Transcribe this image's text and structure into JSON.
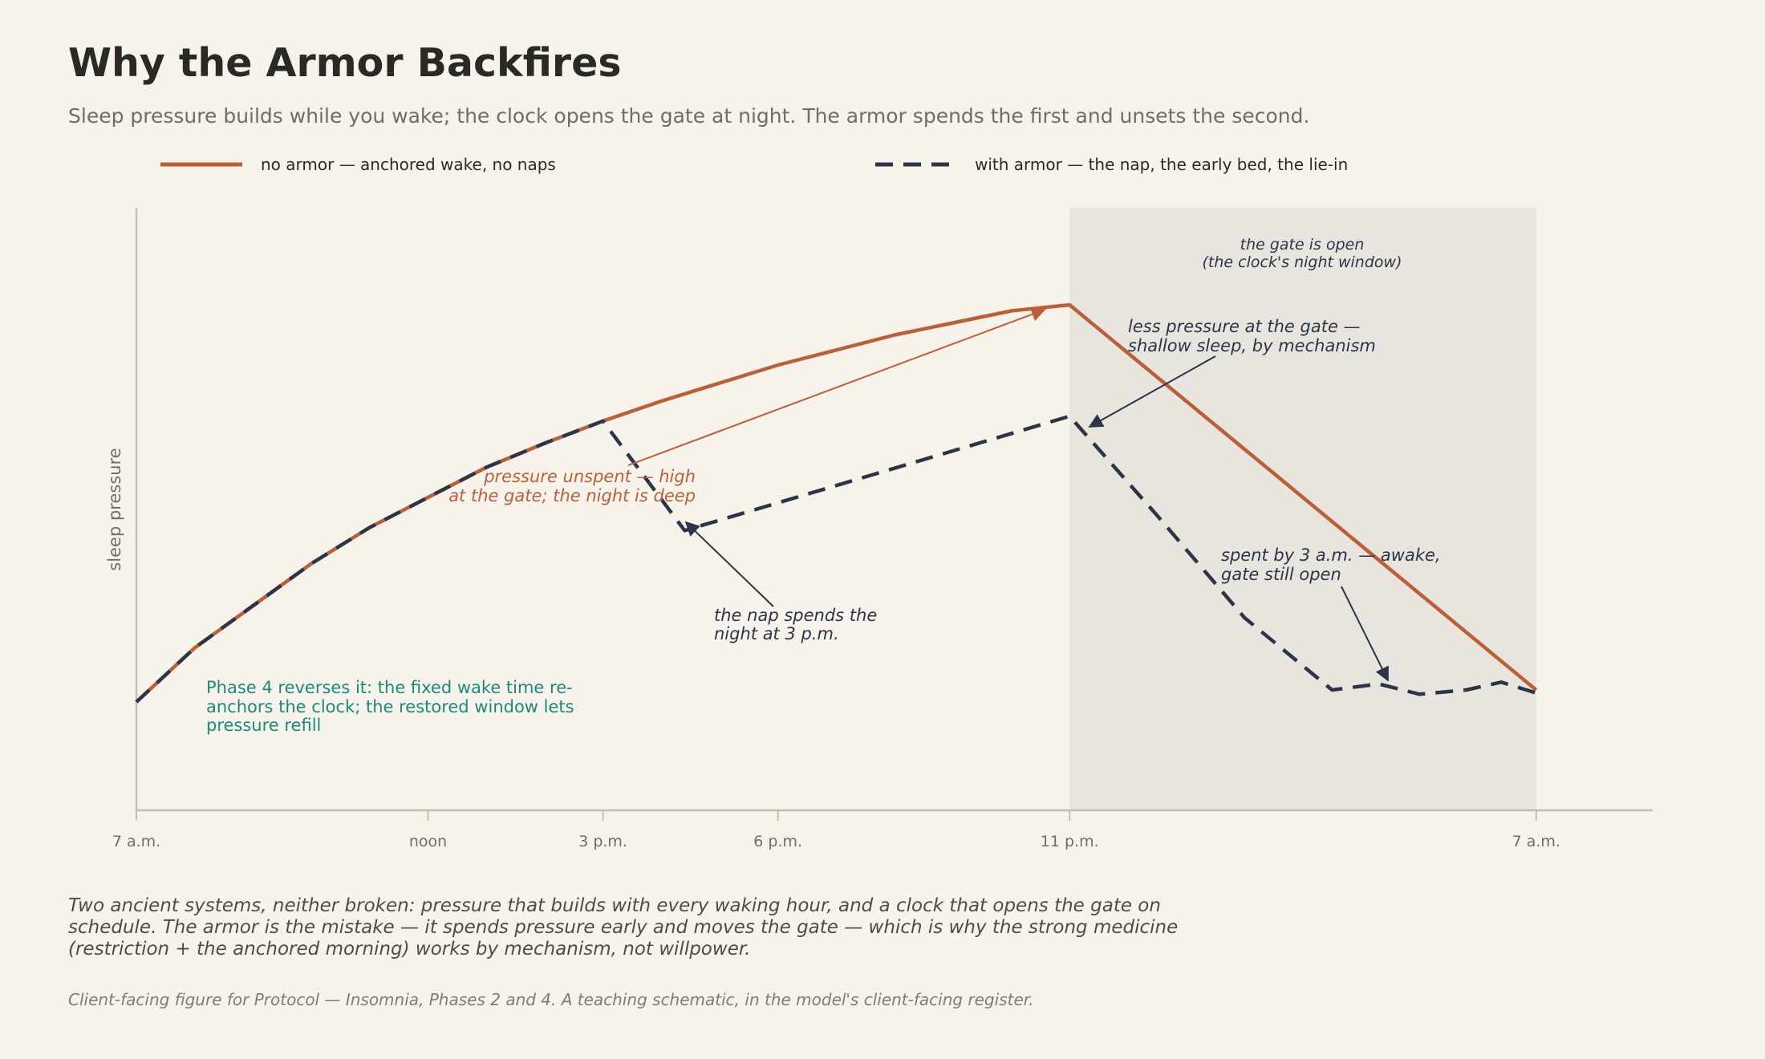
{
  "title": "Why the Armor Backfires",
  "subtitle": "Sleep pressure builds while you wake; the clock opens the gate at night. The armor spends the first and unsets the second.",
  "legend": {
    "no_armor": "no armor — anchored wake, no naps",
    "with_armor": "with armor — the nap, the early bed, the lie-in"
  },
  "colors": {
    "background": "#f7f3ea",
    "no_armor": "#bc5f38",
    "with_armor": "#2c3547",
    "gate_band": "#e8e5de",
    "phase4_note": "#1b8a7a",
    "axis": "#c5bfb2"
  },
  "annotations": {
    "gate_open": [
      "the gate is open",
      "(the clock's night window)"
    ],
    "less_pressure": [
      "less pressure at the gate —",
      "shallow sleep, by mechanism"
    ],
    "unspent": [
      "pressure unspent — high",
      "at the gate; the night is deep"
    ],
    "nap": [
      "the nap spends the",
      "night at 3 p.m."
    ],
    "spent_3am": [
      "spent by 3 a.m. — awake,",
      "gate still open"
    ],
    "phase4": [
      "Phase 4 reverses it: the fixed wake time re-",
      "anchors the clock; the restored window lets",
      "pressure refill"
    ]
  },
  "footnote": "Two ancient systems, neither broken: pressure that builds with every waking hour, and a clock that opens the gate on schedule. The armor is the mistake — it spends pressure early and moves the gate — which is why the strong medicine (restriction + the anchored morning) works by mechanism, not willpower.",
  "source": "Client-facing figure for Protocol — Insomnia, Phases 2 and 4. A teaching schematic, in the model's client-facing register.",
  "chart_data": {
    "type": "line",
    "title": "Why the Armor Backfires",
    "xlabel": "",
    "ylabel": "sleep pressure",
    "x_unit": "hours since 7 a.m.",
    "xlim": [
      0,
      26
    ],
    "ylim": [
      0,
      1
    ],
    "x_ticks": [
      {
        "x": 0,
        "label": "7 a.m."
      },
      {
        "x": 5,
        "label": "noon"
      },
      {
        "x": 8,
        "label": "3 p.m."
      },
      {
        "x": 11,
        "label": "6 p.m."
      },
      {
        "x": 16,
        "label": "11 p.m."
      },
      {
        "x": 24,
        "label": "7 a.m."
      }
    ],
    "gate_window": [
      16,
      24
    ],
    "series": [
      {
        "name": "no armor — anchored wake, no naps",
        "style": "solid",
        "x": [
          0,
          1,
          2,
          3,
          4,
          5,
          6,
          7,
          8,
          9,
          10,
          11,
          12,
          13,
          14,
          15,
          16,
          24
        ],
        "y": [
          0.18,
          0.27,
          0.34,
          0.41,
          0.47,
          0.52,
          0.57,
          0.61,
          0.647,
          0.68,
          0.71,
          0.74,
          0.765,
          0.79,
          0.81,
          0.83,
          0.84,
          0.2
        ]
      },
      {
        "name": "with armor — the nap, the early bed, the lie-in",
        "style": "dashed",
        "x": [
          0,
          1,
          2,
          3,
          4,
          5,
          6,
          7,
          8,
          9.4,
          16,
          17.5,
          19,
          20.5,
          21.3,
          22,
          22.8,
          23.4,
          24
        ],
        "y": [
          0.18,
          0.27,
          0.34,
          0.41,
          0.47,
          0.52,
          0.57,
          0.61,
          0.647,
          0.465,
          0.655,
          0.49,
          0.32,
          0.2,
          0.21,
          0.193,
          0.2,
          0.213,
          0.195
        ]
      }
    ],
    "legend_position": "top",
    "grid": false
  }
}
